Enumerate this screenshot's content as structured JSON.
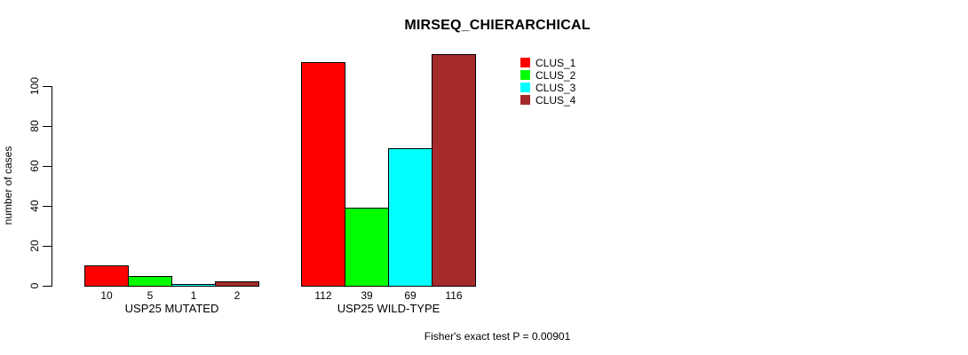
{
  "chart_data": {
    "type": "bar",
    "title": "MIRSEQ_CHIERARCHICAL",
    "ylabel": "number of cases",
    "ylim": [
      0,
      116
    ],
    "yticks": [
      0,
      20,
      40,
      60,
      80,
      100
    ],
    "grid": false,
    "legend_position": "top-right",
    "categories": [
      "USP25 MUTATED",
      "USP25 WILD-TYPE"
    ],
    "series": [
      {
        "name": "CLUS_1",
        "color": "#ff0000",
        "values": [
          10,
          112
        ]
      },
      {
        "name": "CLUS_2",
        "color": "#00ff00",
        "values": [
          5,
          39
        ]
      },
      {
        "name": "CLUS_3",
        "color": "#00ffff",
        "values": [
          1,
          69
        ]
      },
      {
        "name": "CLUS_4",
        "color": "#a52a2a",
        "values": [
          2,
          116
        ]
      }
    ],
    "bar_value_labels": [
      [
        "10",
        "5",
        "1",
        "2"
      ],
      [
        "112",
        "39",
        "69",
        "116"
      ]
    ],
    "annotation": "Fisher's exact test P = 0.00901",
    "bar_border_color": "#000000",
    "background_color": "#ffffff"
  }
}
